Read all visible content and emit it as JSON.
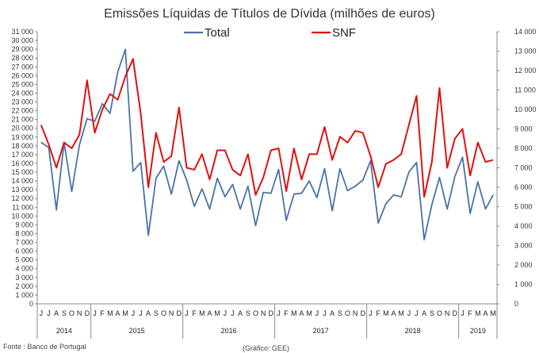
{
  "chart_data": {
    "type": "line",
    "title": "Emissões Líquidas de Títulos de Dívida (milhões de euros)",
    "source_note": "Fonte : Banco de Portugal",
    "credit_note": "(Gráfico: GEE)",
    "colors": {
      "Total": "#4a72a8",
      "SNF": "#dd1111",
      "axis": "#888888"
    },
    "x": [
      "J",
      "J",
      "A",
      "S",
      "O",
      "N",
      "D",
      "J",
      "F",
      "M",
      "A",
      "M",
      "J",
      "J",
      "A",
      "S",
      "O",
      "N",
      "D",
      "J",
      "F",
      "M",
      "A",
      "M",
      "J",
      "J",
      "A",
      "S",
      "O",
      "N",
      "D",
      "J",
      "F",
      "M",
      "A",
      "M",
      "J",
      "J",
      "A",
      "S",
      "O",
      "N",
      "D",
      "J",
      "F",
      "M",
      "A",
      "M",
      "J",
      "J",
      "A",
      "S",
      "O",
      "N",
      "D",
      "J",
      "F",
      "M",
      "A",
      "M"
    ],
    "year_groups": [
      {
        "label": "2014",
        "start": 0,
        "end": 6
      },
      {
        "label": "2015",
        "start": 7,
        "end": 18
      },
      {
        "label": "2016",
        "start": 19,
        "end": 30
      },
      {
        "label": "2017",
        "start": 31,
        "end": 42
      },
      {
        "label": "2018",
        "start": 43,
        "end": 54
      },
      {
        "label": "2019",
        "start": 55,
        "end": 59
      }
    ],
    "y_left": {
      "range": [
        0,
        31000
      ],
      "step": 1000,
      "tick_labels": [
        "0",
        "1 000",
        "2 000",
        "3 000",
        "4 000",
        "5 000",
        "6 000",
        "7 000",
        "8 000",
        "9 000",
        "10 000",
        "11 000",
        "12 000",
        "13 000",
        "14 000",
        "15 000",
        "16 000",
        "17 000",
        "18 000",
        "19 000",
        "20 000",
        "21 000",
        "22 000",
        "23 000",
        "24 000",
        "25 000",
        "26 000",
        "27 000",
        "28 000",
        "29 000",
        "30 000",
        "31 000"
      ]
    },
    "y_right": {
      "range": [
        0,
        14000
      ],
      "step": 1000,
      "tick_labels": [
        "0",
        "1 000",
        "2 000",
        "3 000",
        "4 000",
        "5 000",
        "6 000",
        "7 000",
        "8 000",
        "9 000",
        "10 000",
        "11 000",
        "12 000",
        "13 000",
        "14 000"
      ]
    },
    "series": [
      {
        "name": "Total",
        "axis": "left",
        "values": [
          18400,
          17800,
          10700,
          18400,
          12800,
          18100,
          21100,
          20800,
          22800,
          21700,
          26400,
          29000,
          15100,
          16100,
          7800,
          14300,
          15700,
          12500,
          16300,
          14100,
          11100,
          13100,
          10800,
          14300,
          12200,
          13600,
          10800,
          13400,
          8900,
          12700,
          12600,
          15300,
          9500,
          12500,
          12600,
          14000,
          12100,
          15400,
          10600,
          15400,
          12900,
          13400,
          14100,
          16300,
          9200,
          11400,
          12400,
          12200,
          15000,
          16100,
          7300,
          11300,
          14400,
          10800,
          14500,
          16700,
          10300,
          13900,
          10800,
          12400
        ]
      },
      {
        "name": "SNF",
        "axis": "right",
        "values": [
          9200,
          8200,
          7000,
          8300,
          8000,
          8700,
          11500,
          8800,
          10000,
          10800,
          10500,
          11700,
          12600,
          9800,
          6000,
          8800,
          7300,
          7600,
          10100,
          7000,
          6900,
          7700,
          6400,
          7900,
          7900,
          6900,
          6600,
          7700,
          5600,
          6500,
          7900,
          8000,
          5800,
          8000,
          6400,
          7700,
          7700,
          9100,
          7400,
          8600,
          8300,
          8900,
          8800,
          7600,
          6000,
          7200,
          7400,
          7700,
          9200,
          10700,
          5500,
          7300,
          11100,
          7000,
          8500,
          9000,
          6600,
          8300,
          7300,
          7400
        ]
      }
    ]
  }
}
